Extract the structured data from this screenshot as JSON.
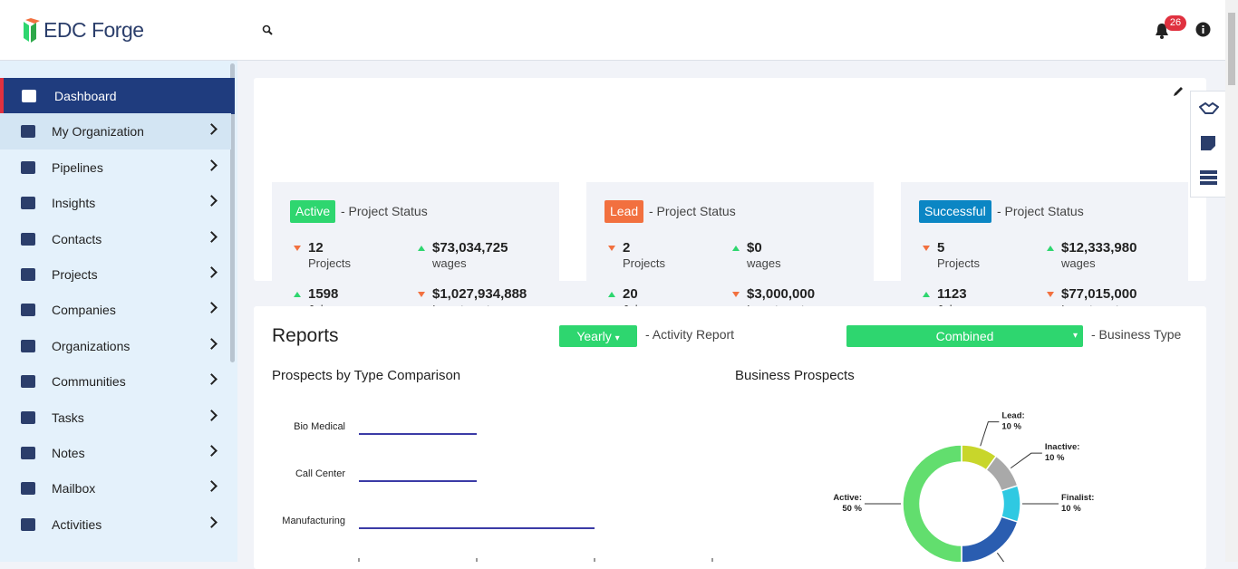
{
  "header": {
    "logo": "EDC Forge",
    "notification_count": 26
  },
  "sidebar": {
    "items": [
      "Dashboard",
      "My Organization",
      "Pipelines",
      "Insights",
      "Contacts",
      "Projects",
      "Companies",
      "Organizations",
      "Communities",
      "Tasks",
      "Notes",
      "Mailbox",
      "Activities"
    ],
    "active_index": 0,
    "hover_index": 1
  },
  "status_cards": [
    {
      "badge": "Active",
      "badge_color": "#2ed66f",
      "subtitle": "- Project Status",
      "stats": [
        {
          "value": "12",
          "label": "Projects",
          "trend": "down"
        },
        {
          "value": "$73,034,725",
          "label": "wages",
          "trend": "up"
        },
        {
          "value": "1598",
          "label": "Jobs",
          "trend": "up"
        },
        {
          "value": "$1,027,934,888",
          "label": "Investment",
          "trend": "down"
        }
      ]
    },
    {
      "badge": "Lead",
      "badge_color": "#f2703f",
      "subtitle": "- Project Status",
      "stats": [
        {
          "value": "2",
          "label": "Projects",
          "trend": "down"
        },
        {
          "value": "$0",
          "label": "wages",
          "trend": "up"
        },
        {
          "value": "20",
          "label": "Jobs",
          "trend": "up"
        },
        {
          "value": "$3,000,000",
          "label": "Investment",
          "trend": "down"
        }
      ]
    },
    {
      "badge": "Successful",
      "badge_color": "#0b86c4",
      "subtitle": "- Project Status",
      "stats": [
        {
          "value": "5",
          "label": "Projects",
          "trend": "down"
        },
        {
          "value": "$12,333,980",
          "label": "wages",
          "trend": "up"
        },
        {
          "value": "1123",
          "label": "Jobs",
          "trend": "up"
        },
        {
          "value": "$77,015,000",
          "label": "Investment",
          "trend": "down"
        }
      ]
    }
  ],
  "reports": {
    "title": "Reports",
    "period": "Yearly",
    "period_label": "- Activity Report",
    "business_type": "Combined",
    "business_type_label": "- Business Type"
  },
  "chart_data": [
    {
      "type": "bar",
      "title": "Prospects by Type Comparison",
      "categories": [
        "Bio Medical",
        "Call Center",
        "Manufacturing"
      ],
      "values": [
        1,
        1,
        2
      ],
      "color": "#3b3ba6",
      "xlim": [
        0,
        3
      ],
      "xticks": [
        0,
        1,
        2,
        3
      ]
    },
    {
      "type": "pie",
      "title": "Business Prospects",
      "categories": [
        "Lead:",
        "Inactive:",
        "Finalist:",
        null,
        "Active:"
      ],
      "values": [
        10,
        10,
        10,
        20,
        50
      ],
      "value_labels": [
        "10 %",
        "10 %",
        "10 %",
        null,
        "50 %"
      ],
      "colors": [
        "#c8d62b",
        "#a9a9a9",
        "#2fc9e2",
        "#2a5db0",
        "#62de6e"
      ],
      "donut": true
    }
  ]
}
